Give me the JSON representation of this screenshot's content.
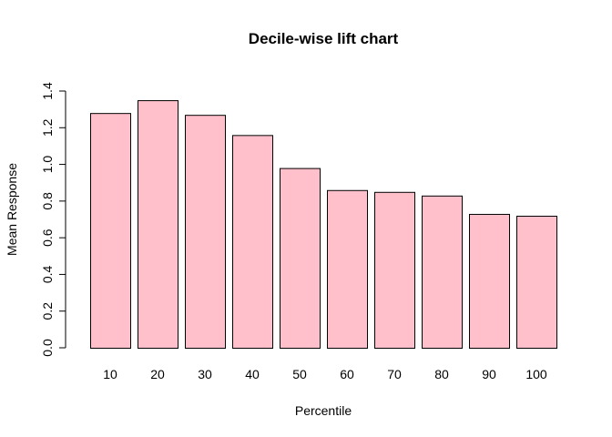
{
  "chart_data": {
    "type": "bar",
    "title": "Decile-wise lift chart",
    "xlabel": "Percentile",
    "ylabel": "Mean Response",
    "categories": [
      "10",
      "20",
      "30",
      "40",
      "50",
      "60",
      "70",
      "80",
      "90",
      "100"
    ],
    "values": [
      1.28,
      1.35,
      1.27,
      1.16,
      0.98,
      0.86,
      0.85,
      0.83,
      0.73,
      0.72
    ],
    "ylim": [
      0,
      1.4
    ],
    "yticks": [
      "0.0",
      "0.2",
      "0.4",
      "0.6",
      "0.8",
      "1.0",
      "1.2",
      "1.4"
    ],
    "grid": false,
    "legend": "none",
    "colors": {
      "bar_fill": "#FFC0CB",
      "bar_stroke": "#000000"
    }
  }
}
